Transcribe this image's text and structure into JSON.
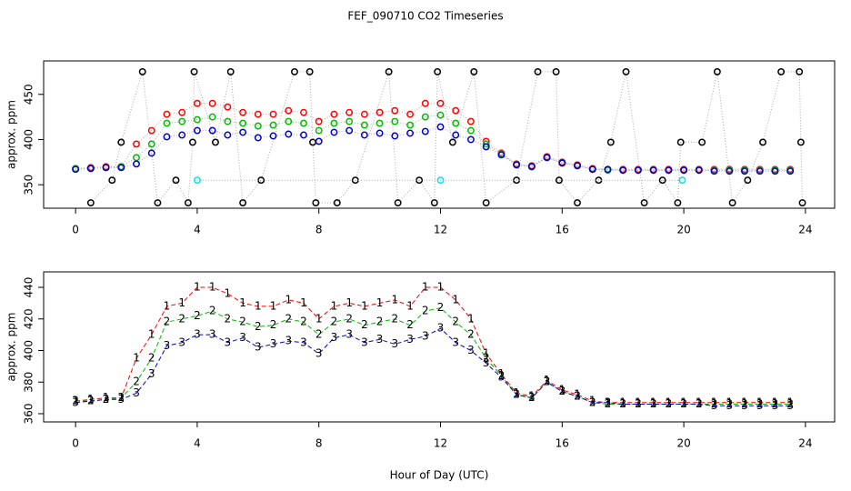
{
  "title": "FEF_090710  CO2 Timeseries",
  "chart_data": [
    {
      "type": "scatter",
      "y_label": "approx. ppm",
      "xlim": [
        -1.05,
        24.96
      ],
      "ylim": [
        324,
        487
      ],
      "xticks": [
        0,
        4,
        8,
        12,
        16,
        20,
        24
      ],
      "yticks": [
        350,
        400,
        450
      ],
      "line_color": "#aaaaaa",
      "series": [
        {
          "color": "#000000",
          "x": [
            0.5,
            1.2,
            1.5,
            2.2,
            2.7,
            3.3,
            3.7,
            3.85,
            3.9,
            4.6,
            5.1,
            5.5,
            6.1,
            7.2,
            7.7,
            7.8,
            7.9,
            8.6,
            9.2,
            10.3,
            10.6,
            11.3,
            11.8,
            11.9,
            12.4,
            13.1,
            13.5,
            14.5,
            15.2,
            15.8,
            15.9,
            16.5,
            17.2,
            17.6,
            18.1,
            18.7,
            19.3,
            19.8,
            19.9,
            20.6,
            21.1,
            21.6,
            22.1,
            22.6,
            23.2,
            23.8,
            23.85,
            23.9
          ],
          "values": [
            330,
            355,
            397,
            475,
            330,
            355,
            330,
            397,
            475,
            397,
            475,
            330,
            355,
            475,
            475,
            397,
            330,
            330,
            355,
            475,
            330,
            355,
            330,
            475,
            397,
            475,
            330,
            355,
            475,
            475,
            355,
            330,
            355,
            397,
            475,
            330,
            355,
            330,
            397,
            397,
            475,
            330,
            355,
            397,
            475,
            475,
            397,
            330
          ]
        },
        {
          "color": "#ff0000",
          "x": [
            0,
            0.5,
            1,
            1.5,
            2,
            2.5,
            3,
            3.5,
            4,
            4.5,
            5,
            5.5,
            6,
            6.5,
            7,
            7.5,
            8,
            8.5,
            9,
            9.5,
            10,
            10.5,
            11,
            11.5,
            12,
            12.5,
            13,
            13.5,
            14,
            14.5,
            15,
            15.5,
            16,
            16.5,
            17,
            17.5,
            18,
            18.5,
            19,
            19.5,
            20,
            20.5,
            21,
            21.5,
            22,
            22.5,
            23,
            23.5
          ],
          "values": [
            368,
            369,
            370,
            370,
            395,
            410,
            428,
            430,
            440,
            440,
            436,
            430,
            428,
            428,
            432,
            430,
            420,
            428,
            430,
            428,
            430,
            432,
            428,
            440,
            440,
            432,
            420,
            398,
            385,
            373,
            371,
            381,
            375,
            372,
            368,
            367,
            367,
            367,
            367,
            367,
            367,
            367,
            367,
            367,
            367,
            367,
            367,
            367
          ]
        },
        {
          "color": "#00bb00",
          "x": [
            0,
            0.5,
            1,
            1.5,
            2,
            2.5,
            3,
            3.5,
            4,
            4.5,
            5,
            5.5,
            6,
            6.5,
            7,
            7.5,
            8,
            8.5,
            9,
            9.5,
            10,
            10.5,
            11,
            11.5,
            12,
            12.5,
            13,
            13.5,
            14,
            14.5,
            15,
            15.5,
            16,
            16.5,
            17,
            17.5,
            18,
            18.5,
            19,
            19.5,
            20,
            20.5,
            21,
            21.5,
            22,
            22.5,
            23,
            23.5
          ],
          "values": [
            368,
            368,
            369,
            370,
            380,
            395,
            418,
            420,
            422,
            425,
            420,
            418,
            415,
            416,
            420,
            418,
            410,
            418,
            420,
            416,
            418,
            420,
            416,
            425,
            427,
            418,
            410,
            395,
            384,
            372,
            370,
            380,
            374,
            371,
            367,
            366,
            366,
            366,
            366,
            366,
            366,
            366,
            366,
            366,
            366,
            366,
            366,
            366
          ]
        },
        {
          "color": "#0000cc",
          "x": [
            0,
            0.5,
            1,
            1.5,
            2,
            2.5,
            3,
            3.5,
            4,
            4.5,
            5,
            5.5,
            6,
            6.5,
            7,
            7.5,
            8,
            8.5,
            9,
            9.5,
            10,
            10.5,
            11,
            11.5,
            12,
            12.5,
            13,
            13.5,
            14,
            14.5,
            15,
            15.5,
            16,
            16.5,
            17,
            17.5,
            18,
            18.5,
            19,
            19.5,
            20,
            20.5,
            21,
            21.5,
            22,
            22.5,
            23,
            23.5
          ],
          "values": [
            367,
            368,
            369,
            369,
            373,
            385,
            403,
            405,
            410,
            410,
            405,
            408,
            402,
            404,
            406,
            405,
            398,
            408,
            410,
            405,
            407,
            404,
            407,
            409,
            414,
            405,
            400,
            392,
            383,
            372,
            370,
            380,
            374,
            371,
            367,
            367,
            366,
            366,
            366,
            366,
            366,
            366,
            365,
            365,
            365,
            365,
            365,
            365
          ]
        },
        {
          "color": "#00e5ee",
          "x": [
            4,
            12,
            19.95
          ],
          "values": [
            355,
            355,
            355
          ]
        }
      ]
    },
    {
      "type": "line",
      "y_label": "approx. ppm",
      "x_label": "Hour of Day (UTC)",
      "xlim": [
        -1.05,
        24.96
      ],
      "ylim": [
        354.8,
        449.8
      ],
      "xticks": [
        0,
        4,
        8,
        12,
        16,
        20,
        24
      ],
      "yticks": [
        360,
        380,
        400,
        420,
        440
      ],
      "series": [
        {
          "marker": "1",
          "color": "#ff0000",
          "x": [
            0,
            0.5,
            1,
            1.5,
            2,
            2.5,
            3,
            3.5,
            4,
            4.5,
            5,
            5.5,
            6,
            6.5,
            7,
            7.5,
            8,
            8.5,
            9,
            9.5,
            10,
            10.5,
            11,
            11.5,
            12,
            12.5,
            13,
            13.5,
            14,
            14.5,
            15,
            15.5,
            16,
            16.5,
            17,
            17.5,
            18,
            18.5,
            19,
            19.5,
            20,
            20.5,
            21,
            21.5,
            22,
            22.5,
            23,
            23.5
          ],
          "values": [
            368,
            369,
            370,
            370,
            395,
            410,
            428,
            430,
            440,
            440,
            436,
            430,
            428,
            428,
            432,
            430,
            420,
            428,
            430,
            428,
            430,
            432,
            428,
            440,
            440,
            432,
            420,
            398,
            385,
            373,
            371,
            381,
            375,
            372,
            368,
            367,
            367,
            367,
            367,
            367,
            367,
            367,
            367,
            367,
            367,
            367,
            367,
            367
          ]
        },
        {
          "marker": "2",
          "color": "#00bb00",
          "x": [
            0,
            0.5,
            1,
            1.5,
            2,
            2.5,
            3,
            3.5,
            4,
            4.5,
            5,
            5.5,
            6,
            6.5,
            7,
            7.5,
            8,
            8.5,
            9,
            9.5,
            10,
            10.5,
            11,
            11.5,
            12,
            12.5,
            13,
            13.5,
            14,
            14.5,
            15,
            15.5,
            16,
            16.5,
            17,
            17.5,
            18,
            18.5,
            19,
            19.5,
            20,
            20.5,
            21,
            21.5,
            22,
            22.5,
            23,
            23.5
          ],
          "values": [
            368,
            368,
            369,
            370,
            380,
            395,
            418,
            420,
            422,
            425,
            420,
            418,
            415,
            416,
            420,
            418,
            410,
            418,
            420,
            416,
            418,
            420,
            416,
            425,
            427,
            418,
            410,
            395,
            384,
            372,
            370,
            380,
            374,
            371,
            367,
            366,
            366,
            366,
            366,
            366,
            366,
            366,
            366,
            366,
            366,
            366,
            366,
            366
          ]
        },
        {
          "marker": "3",
          "color": "#0000cc",
          "x": [
            0,
            0.5,
            1,
            1.5,
            2,
            2.5,
            3,
            3.5,
            4,
            4.5,
            5,
            5.5,
            6,
            6.5,
            7,
            7.5,
            8,
            8.5,
            9,
            9.5,
            10,
            10.5,
            11,
            11.5,
            12,
            12.5,
            13,
            13.5,
            14,
            14.5,
            15,
            15.5,
            16,
            16.5,
            17,
            17.5,
            18,
            18.5,
            19,
            19.5,
            20,
            20.5,
            21,
            21.5,
            22,
            22.5,
            23,
            23.5
          ],
          "values": [
            367,
            368,
            369,
            369,
            373,
            385,
            403,
            405,
            410,
            410,
            405,
            408,
            402,
            404,
            406,
            405,
            398,
            408,
            410,
            405,
            407,
            404,
            407,
            409,
            414,
            405,
            400,
            392,
            383,
            372,
            370,
            380,
            374,
            371,
            367,
            367,
            366,
            366,
            366,
            366,
            366,
            366,
            365,
            365,
            365,
            365,
            365,
            365
          ]
        }
      ]
    }
  ]
}
